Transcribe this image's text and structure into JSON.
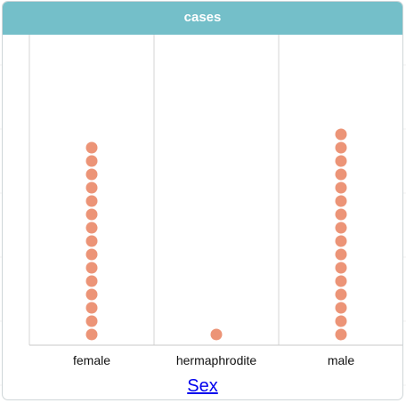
{
  "title": "cases",
  "chart_data": {
    "type": "dot",
    "title": "cases",
    "xlabel": "Sex",
    "categories": [
      "female",
      "hermaphrodite",
      "male"
    ],
    "values": [
      15,
      1,
      16
    ],
    "colors": {
      "dot": "#ec9477",
      "header": "#74bfc9",
      "link": "#0000ee",
      "grid": "#d6d6d6"
    },
    "grid": true
  }
}
